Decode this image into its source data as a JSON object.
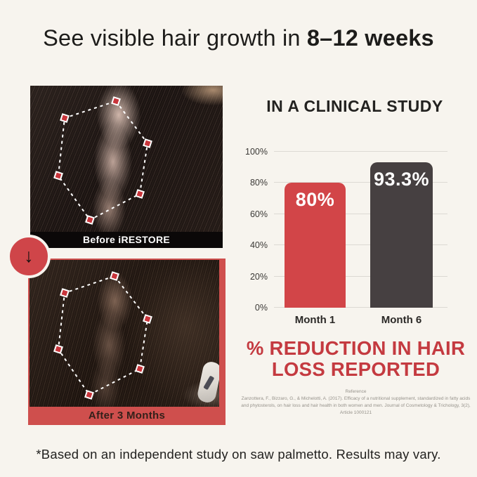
{
  "header": {
    "title_regular": "See visible hair growth in ",
    "title_bold": "8–12 weeks"
  },
  "before_after": {
    "before_label": "Before iRESTORE",
    "after_label": "After 3 Months",
    "arrow_glyph": "↓"
  },
  "study": {
    "heading": "IN A CLINICAL STUDY",
    "result_heading_line1": "% REDUCTION IN HAIR",
    "result_heading_line2": "LOSS REPORTED",
    "reference_title": "Reference",
    "reference_text": "Zanzottera, F., Bizzaro, G., & Michelotti, A. (2017). Efficacy of a nutritional supplement, standardized in fatty acids and phytosterols, on hair loss and hair health in both women and men. Journal of Cosmetology & Trichology, 3(2), Article 1000121"
  },
  "chart_data": {
    "type": "bar",
    "title": "IN A CLINICAL STUDY",
    "categories": [
      "Month 1",
      "Month 6"
    ],
    "values": [
      80,
      93.3
    ],
    "bar_labels": [
      "80%",
      "93.3%"
    ],
    "bar_colors": [
      "#d24548",
      "#464041"
    ],
    "ticks": [
      0,
      20,
      40,
      60,
      80,
      100
    ],
    "tick_labels": [
      "0%",
      "20%",
      "40%",
      "60%",
      "80%",
      "100%"
    ],
    "ylim": [
      0,
      100
    ],
    "grid": true,
    "xlabel": "",
    "ylabel": "",
    "legend": "none",
    "caption": "% REDUCTION IN HAIR LOSS REPORTED"
  },
  "footer": {
    "disclaimer": "*Based on an independent study on saw palmetto. Results may vary."
  },
  "colors": {
    "background": "#f7f4ee",
    "accent_red": "#d24548",
    "dark_bar": "#464041",
    "heading_red": "#c43a40",
    "caption_black": "#0b0808"
  }
}
